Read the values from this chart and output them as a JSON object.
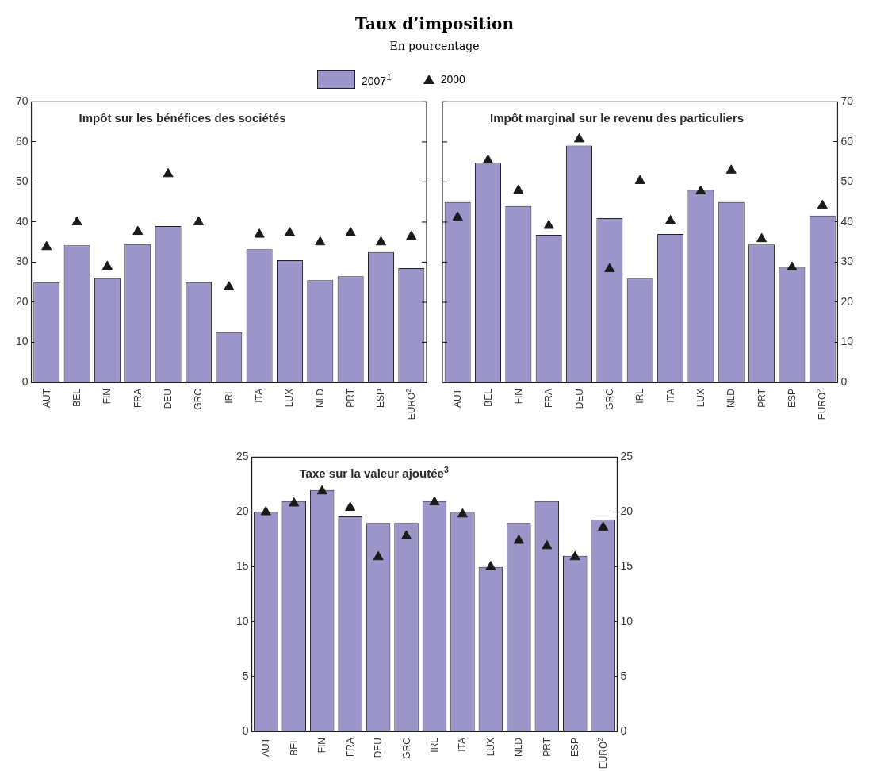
{
  "chart_data": [
    {
      "type": "other",
      "title": "Taux d’imposition",
      "subtitle": "En pourcentage"
    },
    {
      "type": "bar",
      "title": "Impôt sur les bénéfices des sociétés",
      "categories": [
        "AUT",
        "BEL",
        "FIN",
        "FRA",
        "DEU",
        "GRC",
        "IRL",
        "ITA",
        "LUX",
        "NLD",
        "PRT",
        "ESP",
        "EURO$^{2}$"
      ],
      "series": [
        {
          "name": "2007$^{1}$",
          "type": "bar",
          "color": "#9b95c9",
          "values": [
            25,
            34.2,
            26,
            34.5,
            39,
            25,
            12.5,
            33.2,
            30.5,
            25.5,
            26.5,
            32.5,
            28.5
          ]
        },
        {
          "name": "2000",
          "type": "scatter",
          "marker": "triangle",
          "color": "#1a1a1a",
          "values": [
            33.8,
            40,
            28.9,
            37.6,
            52,
            40,
            23.8,
            36.9,
            37.3,
            35,
            37.3,
            35,
            36.4
          ]
        }
      ],
      "ylim": [
        0,
        70
      ],
      "yticks": [
        0,
        10,
        20,
        30,
        40,
        50,
        60,
        70
      ],
      "grid": false,
      "legend": "top"
    },
    {
      "type": "bar",
      "title": "Impôt marginal sur le revenu des particuliers",
      "categories": [
        "AUT",
        "BEL",
        "FIN",
        "FRA",
        "DEU",
        "GRC",
        "IRL",
        "ITA",
        "LUX",
        "NLD",
        "PRT",
        "ESP",
        "EURO$^{2}$"
      ],
      "series": [
        {
          "type": "bar",
          "axis": "y2",
          "color": "#9b95c9",
          "values": [
            45,
            54.8,
            44,
            36.8,
            59.1,
            41,
            25.9,
            37,
            48,
            45,
            34.4,
            28.8,
            41.6
          ]
        },
        {
          "type": "scatter",
          "axis": "y2",
          "marker": "triangle",
          "color": "#1a1a1a",
          "values": [
            41.2,
            55.4,
            47.9,
            39.1,
            60.7,
            28.3,
            50.3,
            40.3,
            47.7,
            52.9,
            35.8,
            28.7,
            44.1
          ]
        }
      ],
      "y2lim": [
        0,
        70
      ],
      "y2ticks": [
        0,
        10,
        20,
        30,
        40,
        50,
        60,
        70
      ],
      "grid": false
    },
    {
      "type": "bar",
      "title": "Taxe sur la valeur ajoutée$^{3}$",
      "categories": [
        "AUT",
        "BEL",
        "FIN",
        "FRA",
        "DEU",
        "GRC",
        "IRL",
        "ITA",
        "LUX",
        "NLD",
        "PRT",
        "ESP",
        "EURO$^{2}$"
      ],
      "series": [
        {
          "type": "bar",
          "color": "#9b95c9",
          "values": [
            20,
            21,
            22,
            19.6,
            19,
            19,
            21,
            20,
            15,
            19,
            21,
            16,
            19.3
          ]
        },
        {
          "type": "scatter",
          "marker": "triangle",
          "color": "#1a1a1a",
          "values": [
            20,
            20.8,
            21.9,
            20.4,
            15.9,
            17.8,
            20.9,
            19.8,
            15,
            17.4,
            16.9,
            15.9,
            18.6
          ]
        }
      ],
      "ylim": [
        0,
        25
      ],
      "yticks": [
        0,
        5,
        10,
        15,
        20,
        25
      ],
      "y2lim": [
        0,
        25
      ],
      "y2ticks": [
        0,
        5,
        10,
        15,
        20,
        25
      ],
      "grid": false
    }
  ]
}
